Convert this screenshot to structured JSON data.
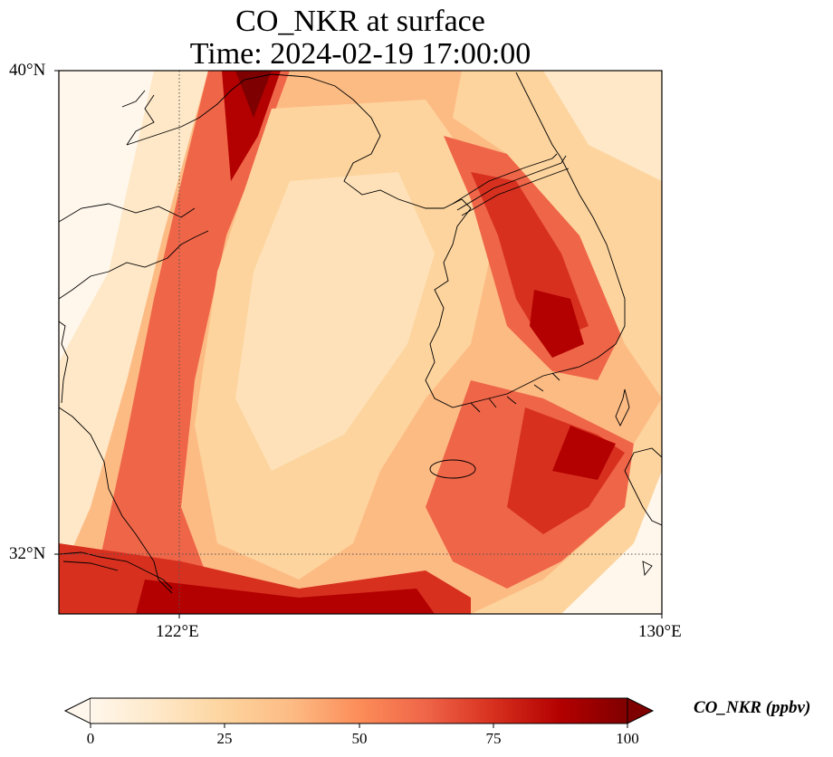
{
  "title": {
    "line1": "CO_NKR at surface",
    "line2": "Time: 2024-02-19 17:00:00"
  },
  "axes": {
    "lat_labels": [
      "40°N",
      "32°N"
    ],
    "lon_labels": [
      "122°E",
      "130°E"
    ],
    "lon_range": [
      120,
      130
    ],
    "lat_range": [
      31,
      40
    ],
    "gridlines": {
      "lon": [
        122
      ],
      "lat": [
        32
      ],
      "style": "dotted"
    }
  },
  "colorbar": {
    "label": "CO_NKR (ppbv)",
    "ticks": [
      "0",
      "25",
      "50",
      "75",
      "100"
    ],
    "range": [
      0,
      100
    ],
    "extend": "both",
    "colormap": "OrRd",
    "colors": [
      "#fff7ec",
      "#fee8c8",
      "#fdd49e",
      "#fdbb84",
      "#fc8d59",
      "#ef6548",
      "#d7301f",
      "#b30000",
      "#7f0000"
    ]
  },
  "map_features": {
    "region": "Yellow Sea / Korean Peninsula",
    "coastline_color": "#000000"
  }
}
